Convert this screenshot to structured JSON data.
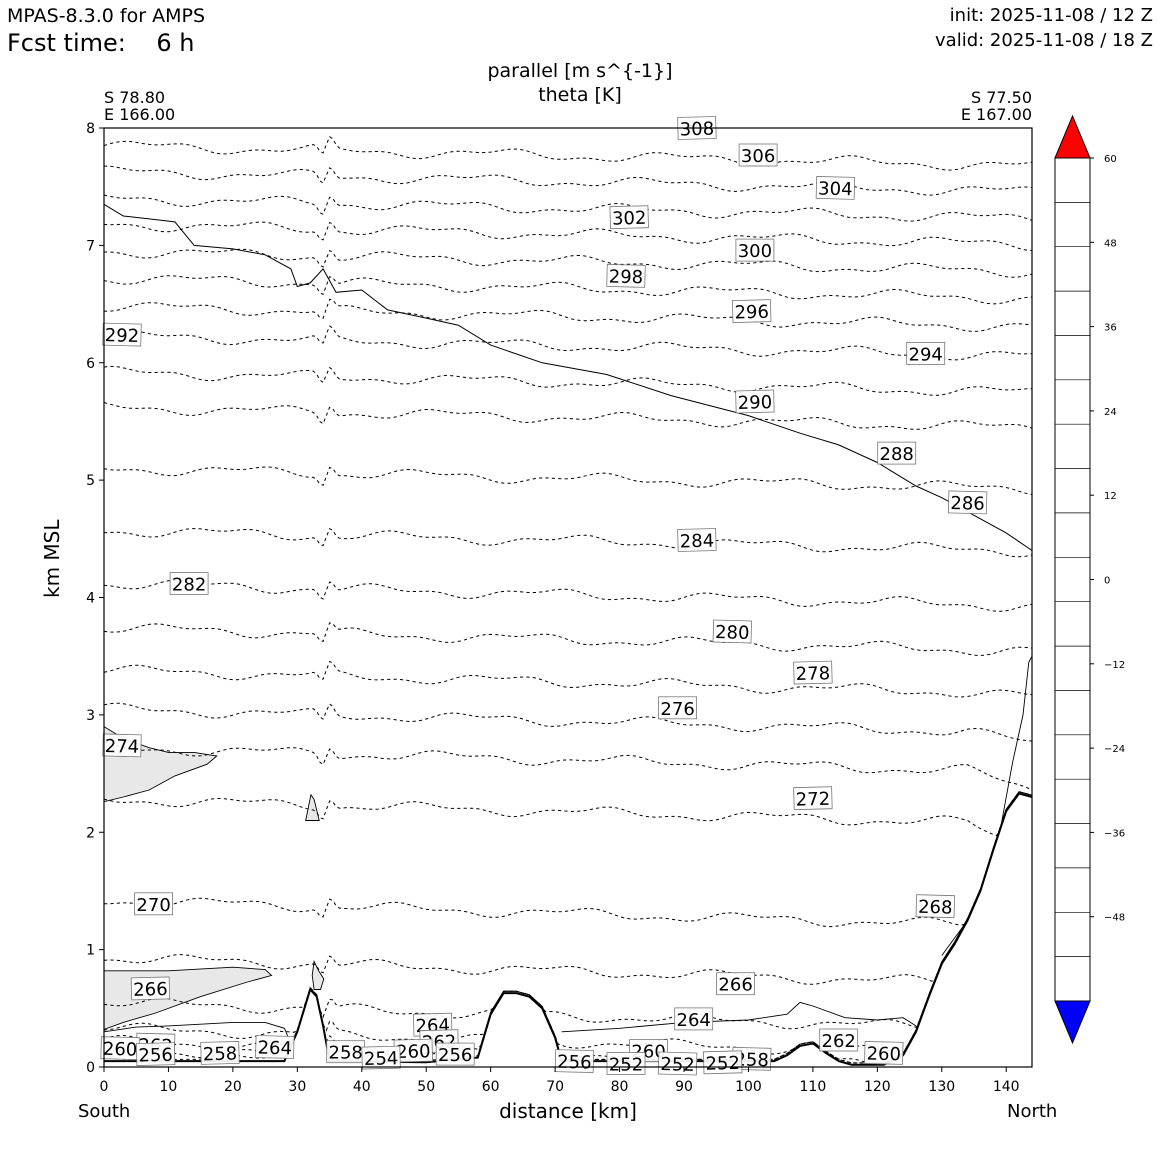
{
  "header": {
    "model": "MPAS-8.3.0 for AMPS",
    "fcst_label": "Fcst time:",
    "fcst_value": "6 h",
    "init": "init: 2025-11-08 / 12 Z",
    "valid": "valid: 2025-11-08 / 18 Z"
  },
  "corners": {
    "left_lat": "S 78.80",
    "left_lon": "E 166.00",
    "right_lat": "S 77.50",
    "right_lon": "E 167.00"
  },
  "ends": {
    "left": "South",
    "right": "North"
  },
  "chart_data": {
    "type": "contour",
    "title": "parallel [m s^{-1}]",
    "subtitle": "theta [K]",
    "xlabel": "distance [km]",
    "ylabel": "km MSL",
    "xlim": [
      0,
      144
    ],
    "ylim": [
      0,
      8
    ],
    "xticks": [
      0,
      10,
      20,
      30,
      40,
      50,
      60,
      70,
      80,
      90,
      100,
      110,
      120,
      130,
      140
    ],
    "yticks": [
      0,
      1,
      2,
      3,
      4,
      5,
      6,
      7,
      8
    ],
    "terrain": [
      [
        0,
        0.05
      ],
      [
        10,
        0.05
      ],
      [
        20,
        0.05
      ],
      [
        28,
        0.05
      ],
      [
        30,
        0.3
      ],
      [
        32,
        0.66
      ],
      [
        33,
        0.6
      ],
      [
        34,
        0.35
      ],
      [
        35,
        0.05
      ],
      [
        50,
        0.04
      ],
      [
        58,
        0.08
      ],
      [
        60,
        0.45
      ],
      [
        62,
        0.63
      ],
      [
        64,
        0.63
      ],
      [
        66,
        0.6
      ],
      [
        68,
        0.5
      ],
      [
        70,
        0.25
      ],
      [
        71,
        0.05
      ],
      [
        100,
        0.05
      ],
      [
        104,
        0.05
      ],
      [
        106,
        0.1
      ],
      [
        108,
        0.18
      ],
      [
        110,
        0.2
      ],
      [
        112,
        0.12
      ],
      [
        114,
        0.05
      ],
      [
        116,
        0.02
      ],
      [
        121,
        0.02
      ],
      [
        124,
        0.1
      ],
      [
        126,
        0.3
      ],
      [
        128,
        0.6
      ],
      [
        130,
        0.88
      ],
      [
        132,
        1.05
      ],
      [
        134,
        1.25
      ],
      [
        136,
        1.5
      ],
      [
        138,
        1.85
      ],
      [
        140,
        2.18
      ],
      [
        142,
        2.33
      ],
      [
        144,
        2.3
      ]
    ],
    "tropopause_contour": [
      [
        0,
        7.35
      ],
      [
        3,
        7.25
      ],
      [
        8,
        7.22
      ],
      [
        11,
        7.2
      ],
      [
        14,
        7.0
      ],
      [
        20,
        6.97
      ],
      [
        25,
        6.92
      ],
      [
        29,
        6.8
      ],
      [
        30,
        6.65
      ],
      [
        32,
        6.68
      ],
      [
        34,
        6.8
      ],
      [
        36,
        6.6
      ],
      [
        40,
        6.62
      ],
      [
        44,
        6.45
      ],
      [
        50,
        6.38
      ],
      [
        55,
        6.32
      ],
      [
        60,
        6.15
      ],
      [
        68,
        6.0
      ],
      [
        78,
        5.9
      ],
      [
        88,
        5.72
      ],
      [
        100,
        5.55
      ],
      [
        108,
        5.4
      ],
      [
        114,
        5.3
      ],
      [
        120,
        5.15
      ],
      [
        126,
        4.95
      ],
      [
        130,
        4.85
      ],
      [
        135,
        4.7
      ],
      [
        140,
        4.55
      ],
      [
        144,
        4.4
      ]
    ],
    "theta_levels": [
      {
        "value": 306,
        "base": 7.85
      },
      {
        "value": 304,
        "base": 7.63
      },
      {
        "value": 302,
        "base": 7.4
      },
      {
        "value": 300,
        "base": 7.18
      },
      {
        "value": 298,
        "base": 6.95
      },
      {
        "value": 296,
        "base": 6.72
      },
      {
        "value": 294,
        "base": 6.48
      },
      {
        "value": 292,
        "base": 6.23
      },
      {
        "value": 290,
        "base": 5.92
      },
      {
        "value": 288,
        "base": 5.62
      },
      {
        "value": 286,
        "base": 5.1
      },
      {
        "value": 284,
        "base": 4.57
      },
      {
        "value": 282,
        "base": 4.12
      },
      {
        "value": 280,
        "base": 3.74
      },
      {
        "value": 278,
        "base": 3.38
      },
      {
        "value": 276,
        "base": 3.05
      },
      {
        "value": 274,
        "base": 2.72
      },
      {
        "value": 272,
        "base": 2.28
      },
      {
        "value": 270,
        "base": 1.42
      },
      {
        "value": 268,
        "base": 0.93
      },
      {
        "value": 266,
        "base": 0.55
      },
      {
        "value": 264,
        "base": 0.33
      },
      {
        "value": 262,
        "base": 0.22
      },
      {
        "value": 260,
        "base": 0.15
      },
      {
        "value": 258,
        "base": 0.1
      }
    ],
    "theta_labels": [
      {
        "text": "308",
        "x": 92.0,
        "y": 8.0
      },
      {
        "text": "306",
        "x": 101.5,
        "y": 7.77
      },
      {
        "text": "304",
        "x": 113.5,
        "y": 7.49
      },
      {
        "text": "302",
        "x": 81.5,
        "y": 7.24
      },
      {
        "text": "300",
        "x": 101.0,
        "y": 6.96
      },
      {
        "text": "298",
        "x": 81.0,
        "y": 6.74
      },
      {
        "text": "296",
        "x": 100.5,
        "y": 6.44
      },
      {
        "text": "294",
        "x": 127.5,
        "y": 6.08
      },
      {
        "text": "292",
        "x": 2.8,
        "y": 6.24
      },
      {
        "text": "290",
        "x": 101.0,
        "y": 5.67
      },
      {
        "text": "288",
        "x": 123.0,
        "y": 5.23
      },
      {
        "text": "286",
        "x": 134.0,
        "y": 4.81
      },
      {
        "text": "284",
        "x": 92.0,
        "y": 4.49
      },
      {
        "text": "282",
        "x": 13.2,
        "y": 4.12
      },
      {
        "text": "280",
        "x": 97.5,
        "y": 3.71
      },
      {
        "text": "278",
        "x": 110.0,
        "y": 3.36
      },
      {
        "text": "276",
        "x": 89.0,
        "y": 3.06
      },
      {
        "text": "274",
        "x": 2.8,
        "y": 2.74
      },
      {
        "text": "272",
        "x": 110.0,
        "y": 2.29
      },
      {
        "text": "270",
        "x": 7.7,
        "y": 1.39
      },
      {
        "text": "268",
        "x": 129.0,
        "y": 1.37
      },
      {
        "text": "266",
        "x": 7.2,
        "y": 0.67
      },
      {
        "text": "266",
        "x": 98.0,
        "y": 0.71
      },
      {
        "text": "264",
        "x": 26.5,
        "y": 0.17
      },
      {
        "text": "264",
        "x": 51.0,
        "y": 0.36
      },
      {
        "text": "264",
        "x": 91.5,
        "y": 0.41
      },
      {
        "text": "262",
        "x": 8.0,
        "y": 0.19
      },
      {
        "text": "262",
        "x": 52.0,
        "y": 0.22
      },
      {
        "text": "262",
        "x": 114.0,
        "y": 0.23
      },
      {
        "text": "260",
        "x": 2.5,
        "y": 0.16
      },
      {
        "text": "260",
        "x": 48.0,
        "y": 0.14
      },
      {
        "text": "260",
        "x": 84.5,
        "y": 0.14
      },
      {
        "text": "260",
        "x": 121.0,
        "y": 0.12
      },
      {
        "text": "258",
        "x": 18.0,
        "y": 0.12
      },
      {
        "text": "258",
        "x": 37.5,
        "y": 0.13
      },
      {
        "text": "258",
        "x": 100.5,
        "y": 0.07
      },
      {
        "text": "256",
        "x": 8.0,
        "y": 0.11
      },
      {
        "text": "256",
        "x": 54.5,
        "y": 0.11
      },
      {
        "text": "256",
        "x": 73.0,
        "y": 0.05
      },
      {
        "text": "254",
        "x": 43.0,
        "y": 0.08
      },
      {
        "text": "252",
        "x": 81.0,
        "y": 0.03
      },
      {
        "text": "252",
        "x": 89.0,
        "y": 0.03
      },
      {
        "text": "252",
        "x": 96.0,
        "y": 0.04
      }
    ],
    "wind_regions": [
      {
        "name": "south-aloft",
        "value": "8 to 12"
      },
      {
        "name": "south-low",
        "value": "8 to 12"
      },
      {
        "name": "spike",
        "value": "8 to 12"
      }
    ],
    "colorbar": {
      "ticks": [
        60,
        48,
        36,
        24,
        12,
        0,
        -12,
        -24,
        -36,
        -48
      ],
      "levels": [
        -60,
        -56,
        -52,
        -48,
        -44,
        -40,
        -36,
        -32,
        -28,
        -24,
        -20,
        -16,
        -12,
        -8,
        -4,
        0,
        4,
        8,
        12,
        16,
        20,
        24,
        28,
        32,
        36,
        40,
        44,
        48,
        52,
        56,
        60
      ],
      "colors": [
        "#0000ff",
        "#00cccc",
        "#00e060",
        "#22ff22",
        "#66ff66",
        "#aaffaa",
        "#ddffdd",
        "#f0fff0",
        "#ffffff",
        "#ffffff",
        "#e8e8e8",
        "#aaaaaa",
        "#bebea0",
        "#ffffaa",
        "#ffff66",
        "#ffff22",
        "#ffe870",
        "#ff7070",
        "#ff0000"
      ],
      "under_color": "#0000ff",
      "over_color": "#ff0000"
    }
  }
}
